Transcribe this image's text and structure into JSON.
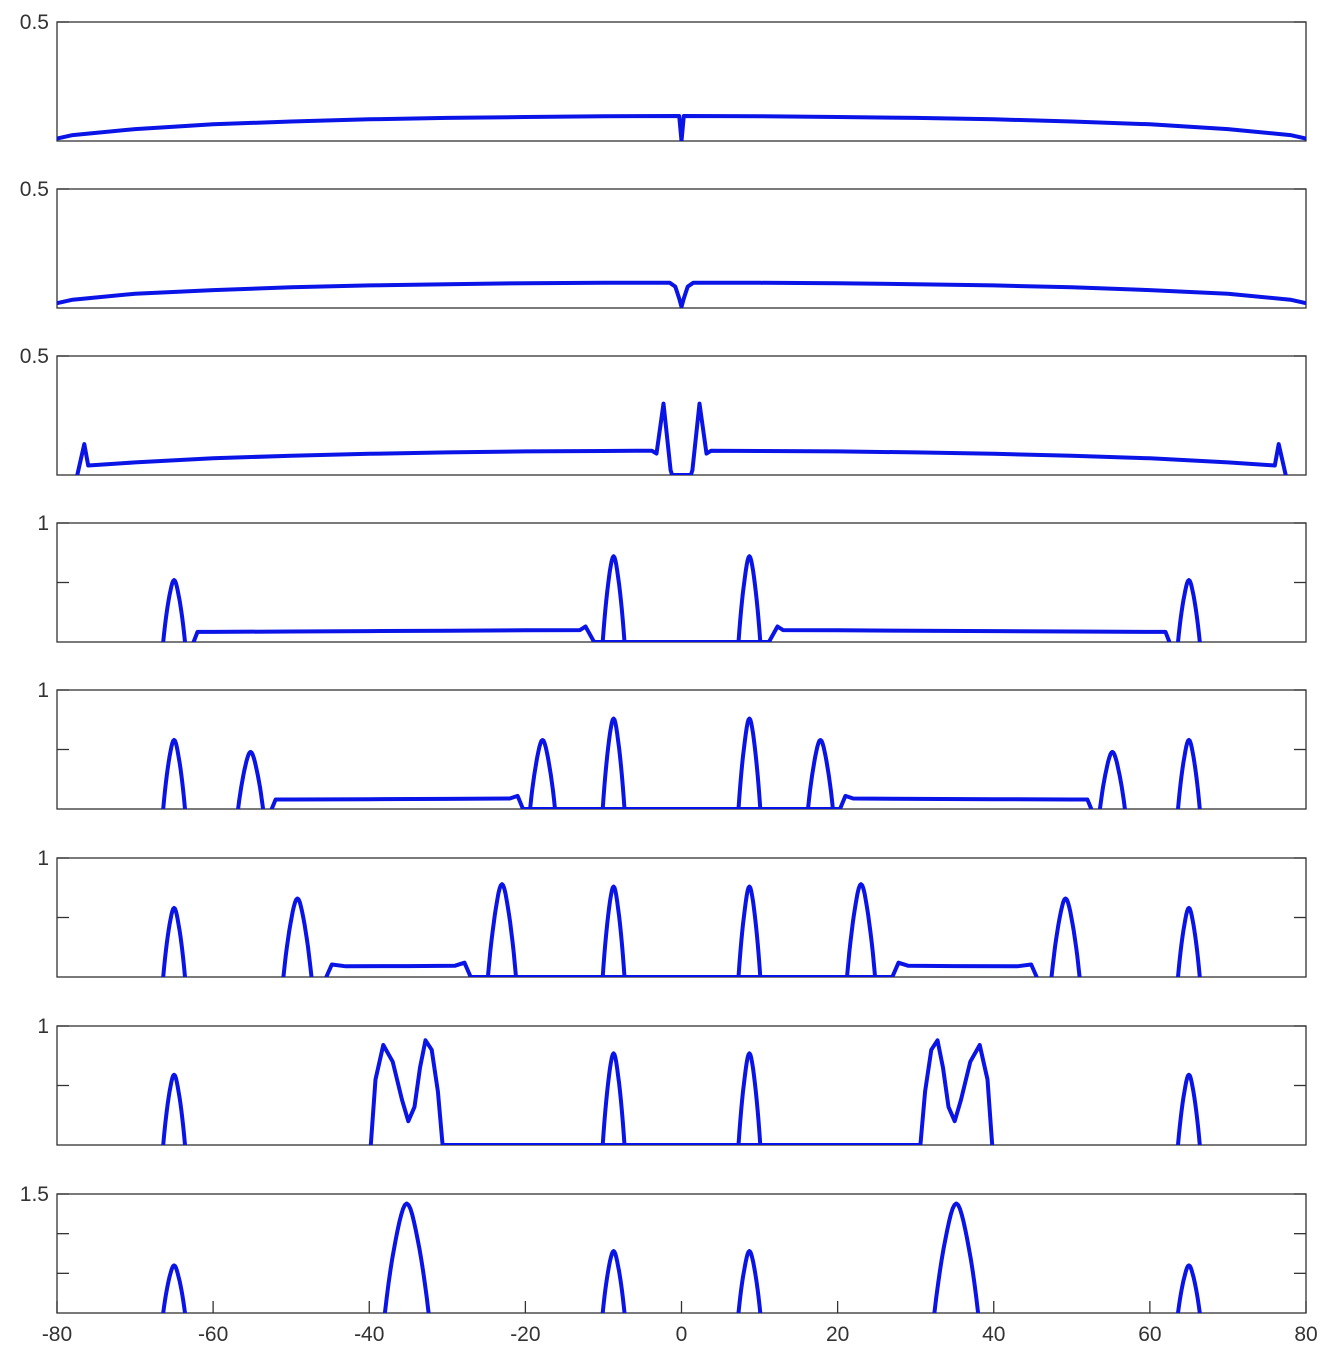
{
  "figure": {
    "line_color": "#0a14e6",
    "axis_color": "#333333"
  },
  "chart_data": [
    {
      "type": "line",
      "xlim": [
        -80,
        80
      ],
      "ylim": [
        0,
        0.5
      ],
      "yticks": [
        {
          "value": 0.5,
          "label": "0.5"
        }
      ],
      "x_tick_labels": [],
      "peaks": [],
      "series": [
        {
          "x": [
            -80,
            -78,
            -70,
            -60,
            -50,
            -40,
            -30,
            -20,
            -10,
            -0.3,
            0,
            0.3,
            10,
            20,
            30,
            40,
            50,
            60,
            70,
            78,
            80
          ],
          "y": [
            0.01,
            0.025,
            0.05,
            0.07,
            0.082,
            0.091,
            0.097,
            0.101,
            0.104,
            0.105,
            0.0,
            0.105,
            0.104,
            0.101,
            0.097,
            0.091,
            0.082,
            0.07,
            0.05,
            0.025,
            0.01
          ]
        }
      ]
    },
    {
      "type": "line",
      "xlim": [
        -80,
        80
      ],
      "ylim": [
        0,
        0.5
      ],
      "yticks": [
        {
          "value": 0.5,
          "label": "0.5"
        }
      ],
      "x_tick_labels": [],
      "peaks": [],
      "series": [
        {
          "x": [
            -80,
            -78,
            -70,
            -60,
            -50,
            -40,
            -30,
            -20,
            -10,
            -1.5,
            -0.8,
            -0.3,
            0,
            0.3,
            0.8,
            1.5,
            10,
            20,
            30,
            40,
            50,
            60,
            70,
            78,
            80
          ],
          "y": [
            0.02,
            0.035,
            0.06,
            0.075,
            0.087,
            0.095,
            0.1,
            0.104,
            0.106,
            0.106,
            0.09,
            0.04,
            0.005,
            0.04,
            0.09,
            0.106,
            0.106,
            0.104,
            0.1,
            0.095,
            0.087,
            0.075,
            0.06,
            0.035,
            0.02
          ]
        }
      ]
    },
    {
      "type": "line",
      "xlim": [
        -80,
        80
      ],
      "ylim": [
        0,
        0.5
      ],
      "yticks": [
        {
          "value": 0.5,
          "label": "0.5"
        }
      ],
      "x_tick_labels": [],
      "peaks": [],
      "series": [
        {
          "x": [
            -77.4,
            -76.5,
            -76,
            -70,
            -60,
            -50,
            -40,
            -30,
            -20,
            -10,
            -3.8,
            -3.2,
            -2.3,
            -1.4,
            -1.2,
            1.2,
            1.4,
            2.3,
            3.2,
            3.8,
            10,
            20,
            30,
            40,
            50,
            60,
            70,
            76,
            76.5,
            77.4
          ],
          "y": [
            0.0,
            0.13,
            0.04,
            0.053,
            0.07,
            0.081,
            0.089,
            0.095,
            0.099,
            0.101,
            0.102,
            0.09,
            0.3,
            0.02,
            0.0,
            0.0,
            0.02,
            0.3,
            0.09,
            0.102,
            0.101,
            0.099,
            0.095,
            0.089,
            0.081,
            0.07,
            0.053,
            0.04,
            0.13,
            0.0
          ]
        }
      ]
    },
    {
      "type": "line",
      "xlim": [
        -80,
        80
      ],
      "ylim": [
        0,
        1
      ],
      "yticks": [
        {
          "value": 1,
          "label": "1"
        },
        {
          "value": 0.5,
          "label": ""
        }
      ],
      "x_tick_labels": [],
      "peaks": [
        {
          "c": -65,
          "h": 0.52,
          "w": 1.4
        },
        {
          "c": -8.7,
          "h": 0.72,
          "w": 1.4
        },
        {
          "c": 8.7,
          "h": 0.72,
          "w": 1.4
        },
        {
          "c": 65,
          "h": 0.52,
          "w": 1.4
        }
      ],
      "series": [
        {
          "x": [
            -62.5,
            -62,
            -60,
            -50,
            -40,
            -30,
            -20,
            -13,
            -12.3,
            -11.2,
            11.2,
            12.3,
            13,
            20,
            30,
            40,
            50,
            60,
            62,
            62.5
          ],
          "y": [
            0.0,
            0.085,
            0.085,
            0.088,
            0.092,
            0.095,
            0.098,
            0.1,
            0.13,
            0.0,
            0.0,
            0.13,
            0.1,
            0.098,
            0.095,
            0.092,
            0.088,
            0.085,
            0.085,
            0.0
          ]
        }
      ]
    },
    {
      "type": "line",
      "xlim": [
        -80,
        80
      ],
      "ylim": [
        0,
        1
      ],
      "yticks": [
        {
          "value": 1,
          "label": "1"
        },
        {
          "value": 0.5,
          "label": ""
        }
      ],
      "x_tick_labels": [],
      "peaks": [
        {
          "c": -65,
          "h": 0.58,
          "w": 1.4
        },
        {
          "c": -55.2,
          "h": 0.48,
          "w": 1.6
        },
        {
          "c": -17.8,
          "h": 0.58,
          "w": 1.6
        },
        {
          "c": -8.7,
          "h": 0.76,
          "w": 1.4
        },
        {
          "c": 8.7,
          "h": 0.76,
          "w": 1.4
        },
        {
          "c": 17.8,
          "h": 0.58,
          "w": 1.6
        },
        {
          "c": 55.2,
          "h": 0.48,
          "w": 1.6
        },
        {
          "c": 65,
          "h": 0.58,
          "w": 1.4
        }
      ],
      "series": [
        {
          "x": [
            -52.5,
            -52,
            -50,
            -40,
            -30,
            -22,
            -21,
            -20.3,
            20.3,
            21,
            22,
            30,
            40,
            50,
            52,
            52.5
          ],
          "y": [
            0.0,
            0.08,
            0.08,
            0.082,
            0.085,
            0.088,
            0.11,
            0.0,
            0.0,
            0.11,
            0.088,
            0.085,
            0.082,
            0.08,
            0.08,
            0.0
          ]
        }
      ]
    },
    {
      "type": "line",
      "xlim": [
        -80,
        80
      ],
      "ylim": [
        0,
        1
      ],
      "yticks": [
        {
          "value": 1,
          "label": "1"
        },
        {
          "value": 0.5,
          "label": ""
        }
      ],
      "x_tick_labels": [],
      "peaks": [
        {
          "c": -65,
          "h": 0.58,
          "w": 1.4
        },
        {
          "c": -49.2,
          "h": 0.66,
          "w": 1.8
        },
        {
          "c": -23,
          "h": 0.78,
          "w": 1.8
        },
        {
          "c": -8.7,
          "h": 0.76,
          "w": 1.4
        },
        {
          "c": 8.7,
          "h": 0.76,
          "w": 1.4
        },
        {
          "c": 23,
          "h": 0.78,
          "w": 1.8
        },
        {
          "c": 49.2,
          "h": 0.66,
          "w": 1.8
        },
        {
          "c": 65,
          "h": 0.58,
          "w": 1.4
        }
      ],
      "series": [
        {
          "x": [
            -45.5,
            -44.8,
            -43,
            -35,
            -29,
            -27.8,
            -27,
            27,
            27.8,
            29,
            35,
            43,
            44.8,
            45.5
          ],
          "y": [
            0.0,
            0.105,
            0.09,
            0.092,
            0.095,
            0.12,
            0.0,
            0.0,
            0.12,
            0.095,
            0.092,
            0.09,
            0.105,
            0.0
          ]
        }
      ]
    },
    {
      "type": "line",
      "xlim": [
        -80,
        80
      ],
      "ylim": [
        0,
        1
      ],
      "yticks": [
        {
          "value": 1,
          "label": "1"
        },
        {
          "value": 0.5,
          "label": ""
        }
      ],
      "x_tick_labels": [],
      "peaks": [
        {
          "c": -65,
          "h": 0.59,
          "w": 1.4
        },
        {
          "c": -8.7,
          "h": 0.77,
          "w": 1.4
        },
        {
          "c": 8.7,
          "h": 0.77,
          "w": 1.4
        },
        {
          "c": 65,
          "h": 0.59,
          "w": 1.4
        }
      ],
      "series": [
        {
          "x": [
            -39.8,
            -39.2,
            -38.2,
            -37,
            -35.8,
            -35,
            -34.2,
            -33.5,
            -32.8,
            -32,
            -31.2,
            -30.6,
            30.6,
            31.2,
            32,
            32.8,
            33.5,
            34.2,
            35,
            35.8,
            37,
            38.2,
            39.2,
            39.8
          ],
          "y": [
            0.0,
            0.55,
            0.84,
            0.7,
            0.38,
            0.2,
            0.32,
            0.65,
            0.88,
            0.8,
            0.45,
            0.0,
            0.0,
            0.45,
            0.8,
            0.88,
            0.65,
            0.32,
            0.2,
            0.38,
            0.7,
            0.84,
            0.55,
            0.0
          ]
        }
      ]
    },
    {
      "type": "line",
      "xlim": [
        -80,
        80
      ],
      "ylim": [
        0,
        1.5
      ],
      "yticks": [
        {
          "value": 1.5,
          "label": "1.5"
        },
        {
          "value": 1,
          "label": ""
        },
        {
          "value": 0.5,
          "label": ""
        }
      ],
      "x_tick_labels": [
        "-80",
        "-60",
        "-40",
        "-20",
        "0",
        "20",
        "40",
        "60",
        "80"
      ],
      "peaks": [
        {
          "c": -65,
          "h": 0.6,
          "w": 1.4
        },
        {
          "c": -35.2,
          "h": 1.38,
          "w": 2.8
        },
        {
          "c": -8.7,
          "h": 0.78,
          "w": 1.4
        },
        {
          "c": 8.7,
          "h": 0.78,
          "w": 1.4
        },
        {
          "c": 35.2,
          "h": 1.38,
          "w": 2.8
        },
        {
          "c": 65,
          "h": 0.6,
          "w": 1.4
        }
      ],
      "series": []
    }
  ]
}
